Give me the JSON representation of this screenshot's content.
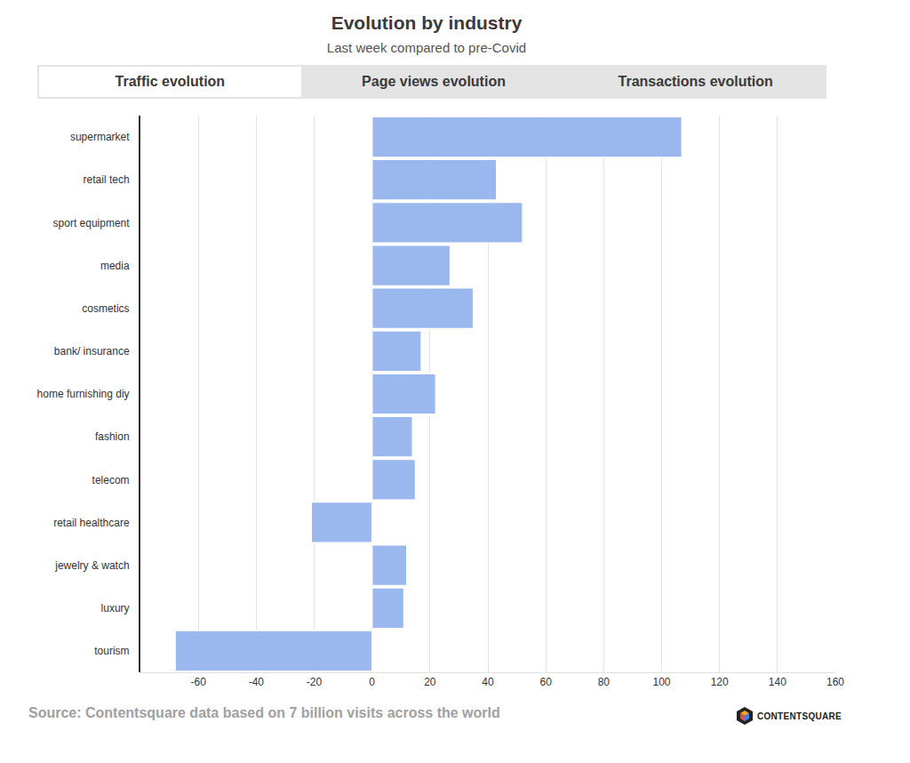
{
  "chart_data": {
    "type": "bar",
    "orientation": "horizontal",
    "title": "Evolution by industry",
    "subtitle": "Last week compared to pre-Covid",
    "tabs": [
      "Traffic evolution",
      "Page views evolution",
      "Transactions evolution"
    ],
    "source": "Source: Contentsquare data based on 7 billion visits across the world",
    "logo_text": "CONTENTSQUARE",
    "categories": [
      "supermarket",
      "retail tech",
      "sport equipment",
      "media",
      "cosmetics",
      "bank/ insurance",
      "home furnishing diy",
      "fashion",
      "telecom",
      "retail healthcare",
      "jewelry & watch",
      "luxury",
      "tourism"
    ],
    "values": [
      107,
      43,
      52,
      27,
      35,
      17,
      22,
      14,
      15,
      -21,
      12,
      11,
      -68
    ],
    "color": "#9ab8ee",
    "xlim": [
      -80,
      160
    ],
    "xticks": [
      -60,
      -40,
      -20,
      0,
      20,
      40,
      60,
      80,
      100,
      120,
      140,
      160
    ],
    "grid": true
  }
}
